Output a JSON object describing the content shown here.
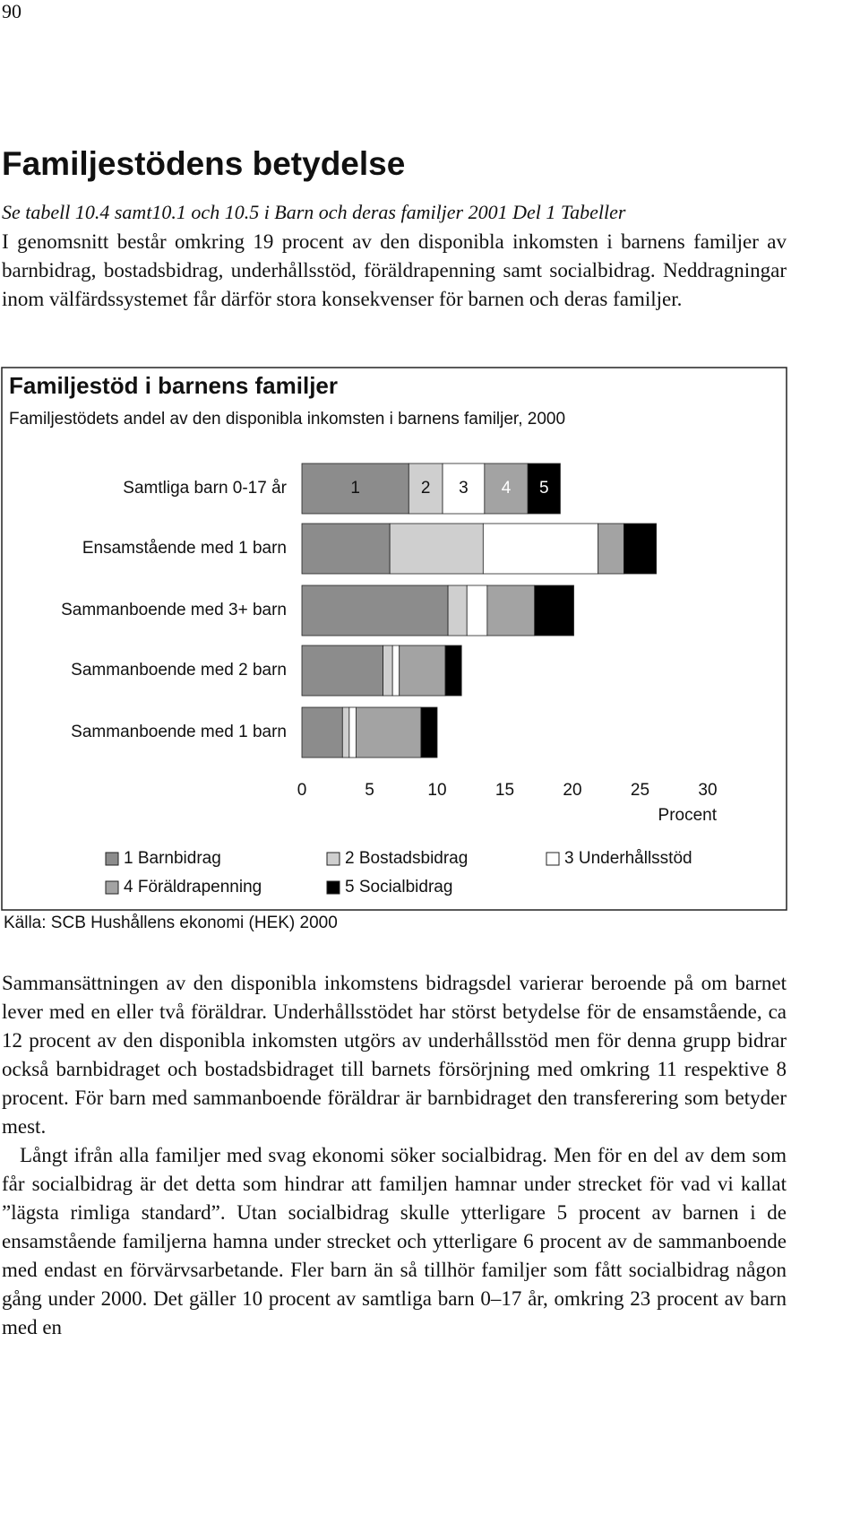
{
  "page_number": "90",
  "heading": "Familjestödens betydelse",
  "reference": "Se tabell 10.4 samt10.1 och 10.5   i Barn och deras familjer 2001 Del 1 Tabeller",
  "paragraphs_before": [
    "I genomsnitt består omkring 19 procent av den disponibla inkomsten i barnens familjer av barnbidrag, bostadsbidrag, underhållsstöd, föräldrapenning samt socialbidrag. Neddragningar inom välfärdssystemet får därför stora konsekvenser för barnen och deras familjer."
  ],
  "chart_data": {
    "type": "stacked-bar-horizontal",
    "title": "Familjestöd i barnens familjer",
    "subtitle": "Familjestödets andel av den disponibla inkomsten i barnens familjer, 2000",
    "categories": [
      "Samtliga barn 0-17 år",
      "Ensamstående med 1 barn",
      "Sammanboende med 3+ barn",
      "Sammanboende med 2 barn",
      "Sammanboende med 1 barn"
    ],
    "series": [
      {
        "name": "1 Barnbidrag",
        "color": "#8c8c8c",
        "values": [
          7.9,
          6.5,
          10.8,
          6.0,
          3.0
        ]
      },
      {
        "name": "2 Bostadsbidrag",
        "color": "#cfcfcf",
        "values": [
          2.5,
          6.9,
          1.4,
          0.7,
          0.5
        ]
      },
      {
        "name": "3 Underhållsstöd",
        "color": "#ffffff",
        "values": [
          3.1,
          8.5,
          1.5,
          0.5,
          0.5
        ]
      },
      {
        "name": "4 Föräldrapenning",
        "color": "#a3a3a3",
        "values": [
          3.2,
          1.9,
          3.5,
          3.4,
          4.8
        ]
      },
      {
        "name": "5 Socialbidrag",
        "color": "#000000",
        "values": [
          2.4,
          2.4,
          2.9,
          1.2,
          1.2
        ]
      }
    ],
    "segment_labels": [
      "1",
      "2",
      "3",
      "4",
      "5"
    ],
    "xlim": [
      0,
      30
    ],
    "xticks": [
      0,
      5,
      10,
      15,
      20,
      25,
      30
    ],
    "xlabel": "Procent",
    "grid": false,
    "source": "Källa: SCB Hushållens ekonomi (HEK) 2000"
  },
  "paragraphs_after": [
    "Sammansättningen av den disponibla inkomstens bidragsdel varierar beroende på om barnet lever med en eller två föräldrar. Underhållsstödet har störst betydelse för de ensamstående, ca 12 procent av den disponibla inkomsten utgörs av underhållsstöd men för denna grupp bidrar också barnbidraget och bostadsbidraget till barnets försörjning med omkring 11 respektive 8 procent. För barn med sammanboende föräldrar är barnbidraget den transferering som betyder mest.",
    "Långt ifrån alla familjer med svag ekonomi söker socialbidrag. Men för en del av dem som får socialbidrag är det detta som hindrar att familjen hamnar under strecket för vad vi kallat ”lägsta rimliga standard”. Utan socialbidrag skulle ytterligare 5 procent av barnen i de ensamstående familjerna hamna under strecket och ytterligare 6 procent av de sammanboende med endast en förvärvsarbetande. Fler barn än så tillhör familjer som fått socialbidrag någon gång under 2000. Det gäller 10 procent av samtliga barn 0–17 år, omkring 23 procent av barn med en"
  ]
}
